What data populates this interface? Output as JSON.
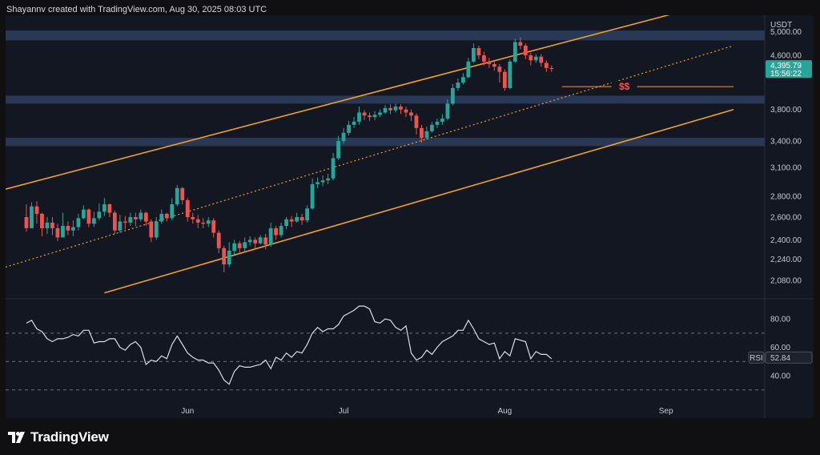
{
  "header": {
    "text": "Shayannv created with TradingView.com, Aug 30, 2025 08:03 UTC"
  },
  "footer": {
    "brand": "TradingView"
  },
  "chart_data": {
    "type": "candlestick",
    "symbol_currency": "USDT",
    "price_axis": {
      "ticks": [
        {
          "label": "5,000.00",
          "value": 5000
        },
        {
          "label": "4,600.00",
          "value": 4600
        },
        {
          "label": "3,800.00",
          "value": 3800
        },
        {
          "label": "3,400.00",
          "value": 3400
        },
        {
          "label": "3,100.00",
          "value": 3100
        },
        {
          "label": "2,800.00",
          "value": 2800
        },
        {
          "label": "2,600.00",
          "value": 2600
        },
        {
          "label": "2,400.00",
          "value": 2400
        },
        {
          "label": "2,240.00",
          "value": 2240
        },
        {
          "label": "2,080.00",
          "value": 2080
        }
      ],
      "scale": "log",
      "range": [
        1960,
        5300
      ]
    },
    "time_axis": {
      "ticks": [
        {
          "label": "Jun",
          "day": 31
        },
        {
          "label": "Jul",
          "day": 61
        },
        {
          "label": "Aug",
          "day": 92
        },
        {
          "label": "Sep",
          "day": 123
        }
      ],
      "range_days": [
        -4,
        142
      ]
    },
    "last_price": {
      "label": "4,395.79",
      "value": 4396,
      "countdown": "15:56:22"
    },
    "annotation": {
      "text": "$$",
      "level": 4120
    },
    "resistance_zones": [
      {
        "low": 4850,
        "high": 5020
      },
      {
        "low": 3880,
        "high": 3990
      },
      {
        "low": 3340,
        "high": 3440
      }
    ],
    "channel": {
      "upper": [
        {
          "day": -4,
          "price": 2870
        },
        {
          "day": 131,
          "price": 5500
        }
      ],
      "lower": [
        {
          "day": 15,
          "price": 1990
        },
        {
          "day": 136,
          "price": 3800
        }
      ],
      "mid": [
        {
          "day": -4,
          "price": 2180
        },
        {
          "day": 136,
          "price": 4760
        }
      ]
    },
    "liquidity_line": {
      "day_start": 103,
      "day_end": 136,
      "price": 4120
    },
    "candles": [
      [
        3200,
        2500,
        2600,
        2470,
        2720
      ],
      [
        2600,
        2700,
        2740,
        2550,
        2740
      ],
      [
        2700,
        2630,
        2640,
        2540,
        2750
      ],
      [
        2630,
        2500,
        2510,
        2430,
        2640
      ],
      [
        2500,
        2550,
        2560,
        2450,
        2600
      ],
      [
        2550,
        2500,
        2510,
        2440,
        2600
      ],
      [
        2500,
        2420,
        2440,
        2390,
        2540
      ],
      [
        2420,
        2520,
        2530,
        2420,
        2640
      ],
      [
        2520,
        2480,
        2490,
        2440,
        2560
      ],
      [
        2480,
        2510,
        2520,
        2430,
        2570
      ],
      [
        2510,
        2590,
        2610,
        2480,
        2630
      ],
      [
        2590,
        2670,
        2700,
        2580,
        2710
      ],
      [
        2670,
        2540,
        2560,
        2510,
        2680
      ],
      [
        2540,
        2590,
        2610,
        2510,
        2650
      ],
      [
        2590,
        2650,
        2660,
        2570,
        2730
      ],
      [
        2650,
        2720,
        2730,
        2610,
        2780
      ],
      [
        2720,
        2640,
        2660,
        2600,
        2730
      ],
      [
        2640,
        2480,
        2500,
        2450,
        2660
      ],
      [
        2480,
        2560,
        2580,
        2460,
        2620
      ],
      [
        2560,
        2550,
        2560,
        2490,
        2610
      ],
      [
        2550,
        2600,
        2610,
        2520,
        2640
      ],
      [
        2600,
        2580,
        2590,
        2520,
        2640
      ],
      [
        2580,
        2640,
        2650,
        2560,
        2670
      ],
      [
        2640,
        2560,
        2570,
        2520,
        2650
      ],
      [
        2560,
        2420,
        2440,
        2380,
        2580
      ],
      [
        2420,
        2560,
        2580,
        2400,
        2600
      ],
      [
        2560,
        2630,
        2640,
        2540,
        2670
      ],
      [
        2630,
        2590,
        2600,
        2560,
        2640
      ],
      [
        2590,
        2720,
        2740,
        2570,
        2780
      ],
      [
        2720,
        2880,
        2900,
        2700,
        2910
      ],
      [
        2880,
        2760,
        2780,
        2720,
        2890
      ],
      [
        2760,
        2600,
        2620,
        2560,
        2780
      ],
      [
        2600,
        2580,
        2590,
        2540,
        2640
      ],
      [
        2580,
        2550,
        2560,
        2500,
        2620
      ],
      [
        2550,
        2540,
        2550,
        2500,
        2590
      ],
      [
        2540,
        2570,
        2580,
        2510,
        2600
      ],
      [
        2570,
        2460,
        2480,
        2420,
        2590
      ],
      [
        2460,
        2330,
        2350,
        2290,
        2480
      ],
      [
        2330,
        2200,
        2220,
        2140,
        2350
      ],
      [
        2200,
        2310,
        2330,
        2180,
        2380
      ],
      [
        2310,
        2370,
        2380,
        2280,
        2400
      ],
      [
        2370,
        2330,
        2340,
        2280,
        2390
      ],
      [
        2330,
        2380,
        2390,
        2300,
        2420
      ],
      [
        2380,
        2400,
        2410,
        2350,
        2430
      ],
      [
        2400,
        2370,
        2380,
        2330,
        2420
      ],
      [
        2370,
        2420,
        2430,
        2360,
        2440
      ],
      [
        2420,
        2360,
        2370,
        2320,
        2450
      ],
      [
        2360,
        2500,
        2520,
        2340,
        2550
      ],
      [
        2500,
        2440,
        2450,
        2400,
        2520
      ],
      [
        2440,
        2520,
        2530,
        2420,
        2550
      ],
      [
        2520,
        2580,
        2590,
        2490,
        2600
      ],
      [
        2580,
        2560,
        2570,
        2510,
        2610
      ],
      [
        2560,
        2600,
        2610,
        2550,
        2640
      ],
      [
        2600,
        2570,
        2580,
        2530,
        2630
      ],
      [
        2570,
        2680,
        2700,
        2550,
        2710
      ],
      [
        2680,
        2920,
        2940,
        2670,
        2980
      ],
      [
        2920,
        2940,
        2960,
        2880,
        2990
      ],
      [
        2940,
        2960,
        2970,
        2900,
        3010
      ],
      [
        2960,
        2980,
        2990,
        2920,
        3030
      ],
      [
        2980,
        3200,
        3220,
        2960,
        3260
      ],
      [
        3200,
        3400,
        3420,
        3180,
        3460
      ],
      [
        3400,
        3500,
        3510,
        3370,
        3560
      ],
      [
        3500,
        3600,
        3620,
        3470,
        3650
      ],
      [
        3600,
        3640,
        3660,
        3560,
        3700
      ],
      [
        3640,
        3760,
        3780,
        3600,
        3840
      ],
      [
        3760,
        3720,
        3740,
        3660,
        3790
      ],
      [
        3720,
        3700,
        3710,
        3650,
        3760
      ],
      [
        3700,
        3730,
        3740,
        3660,
        3780
      ],
      [
        3730,
        3760,
        3770,
        3700,
        3800
      ],
      [
        3760,
        3820,
        3830,
        3740,
        3860
      ],
      [
        3820,
        3790,
        3800,
        3740,
        3870
      ],
      [
        3790,
        3840,
        3850,
        3760,
        3880
      ],
      [
        3840,
        3800,
        3810,
        3740,
        3870
      ],
      [
        3800,
        3760,
        3770,
        3700,
        3840
      ],
      [
        3760,
        3720,
        3730,
        3650,
        3800
      ],
      [
        3720,
        3560,
        3580,
        3480,
        3750
      ],
      [
        3560,
        3440,
        3460,
        3380,
        3600
      ],
      [
        3440,
        3520,
        3540,
        3420,
        3580
      ],
      [
        3520,
        3600,
        3620,
        3500,
        3640
      ],
      [
        3600,
        3640,
        3650,
        3560,
        3680
      ],
      [
        3640,
        3680,
        3700,
        3600,
        3740
      ],
      [
        3680,
        3880,
        3900,
        3660,
        3940
      ],
      [
        3880,
        4100,
        4120,
        3860,
        4160
      ],
      [
        4100,
        4180,
        4200,
        4060,
        4240
      ],
      [
        4180,
        4260,
        4280,
        4150,
        4320
      ],
      [
        4260,
        4500,
        4520,
        4240,
        4560
      ],
      [
        4500,
        4720,
        4740,
        4480,
        4800
      ],
      [
        4720,
        4600,
        4620,
        4540,
        4760
      ],
      [
        4600,
        4500,
        4520,
        4440,
        4660
      ],
      [
        4500,
        4460,
        4470,
        4400,
        4560
      ],
      [
        4460,
        4420,
        4430,
        4360,
        4500
      ],
      [
        4420,
        4340,
        4350,
        4180,
        4460
      ],
      [
        4340,
        4100,
        4120,
        4060,
        4380
      ],
      [
        4100,
        4500,
        4520,
        4080,
        4540
      ],
      [
        4500,
        4820,
        4840,
        4480,
        4880
      ],
      [
        4820,
        4760,
        4780,
        4700,
        4900
      ],
      [
        4760,
        4600,
        4620,
        4540,
        4800
      ],
      [
        4600,
        4520,
        4540,
        4440,
        4640
      ],
      [
        4520,
        4580,
        4600,
        4480,
        4620
      ],
      [
        4580,
        4480,
        4500,
        4420,
        4620
      ],
      [
        4480,
        4400,
        4410,
        4340,
        4520
      ],
      [
        4400,
        4390,
        4396,
        4340,
        4440
      ]
    ],
    "rsi": {
      "label": "RSI",
      "value_label": "52.84",
      "value": 52.84,
      "ticks": [
        {
          "label": "80.00",
          "value": 80
        },
        {
          "label": "60.00",
          "value": 60
        },
        {
          "label": "40.00",
          "value": 40
        }
      ],
      "bands": [
        70,
        50,
        30
      ],
      "range": [
        22,
        93
      ],
      "values": [
        77,
        79,
        73,
        71,
        66,
        64,
        66,
        66,
        67,
        69,
        68,
        72,
        72,
        63,
        64,
        64,
        66,
        66,
        60,
        58,
        62,
        64,
        60,
        48,
        51,
        50,
        54,
        52,
        62,
        68,
        62,
        56,
        53,
        51,
        51,
        49,
        49,
        44,
        37,
        34,
        43,
        47,
        46,
        46,
        47,
        48,
        51,
        45,
        53,
        51,
        56,
        53,
        57,
        56,
        62,
        70,
        74,
        71,
        73,
        73,
        76,
        82,
        84,
        86,
        89,
        89,
        87,
        78,
        77,
        80,
        79,
        74,
        72,
        75,
        56,
        51,
        53,
        58,
        55,
        60,
        64,
        66,
        68,
        72,
        72,
        79,
        73,
        66,
        64,
        62,
        63,
        52,
        57,
        54,
        66,
        65,
        64,
        52,
        57,
        55,
        55,
        52
      ]
    }
  },
  "colors": {
    "up": "#26a69a",
    "down": "#ef5350",
    "channel": "#f0a02a",
    "zone": "#2a3b59",
    "rsi_line": "#d9dde6",
    "last_price_bg": "#26a69a",
    "annotation": "#ef5350"
  }
}
